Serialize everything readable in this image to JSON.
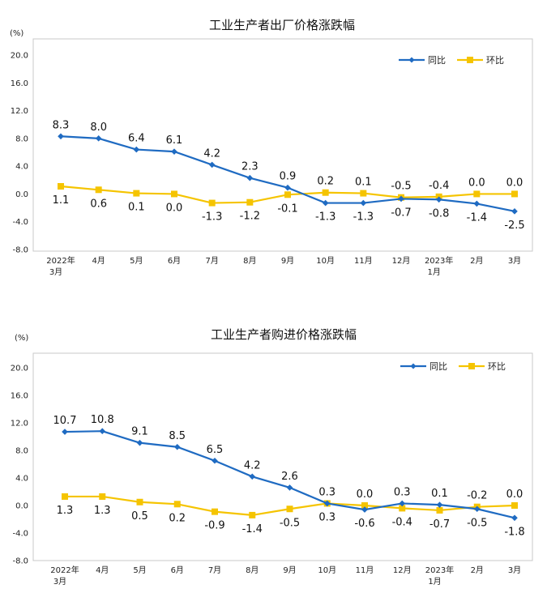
{
  "colors": {
    "yoy": "#1f6bc2",
    "mom": "#f5c400",
    "frame": "#c8c8c8"
  },
  "chart_data": [
    {
      "type": "line",
      "title": "工业生产者出厂价格涨跌幅",
      "unit": "(%)",
      "yticks": [
        "20.0",
        "16.0",
        "12.0",
        "8.0",
        "4.0",
        "0.0",
        "-4.0",
        "-8.0"
      ],
      "ylim": [
        -8,
        20
      ],
      "categories": [
        {
          "line1": "2022年",
          "line2": "3月"
        },
        {
          "line1": "4月",
          "line2": ""
        },
        {
          "line1": "5月",
          "line2": ""
        },
        {
          "line1": "6月",
          "line2": ""
        },
        {
          "line1": "7月",
          "line2": ""
        },
        {
          "line1": "8月",
          "line2": ""
        },
        {
          "line1": "9月",
          "line2": ""
        },
        {
          "line1": "10月",
          "line2": ""
        },
        {
          "line1": "11月",
          "line2": ""
        },
        {
          "line1": "12月",
          "line2": ""
        },
        {
          "line1": "2023年",
          "line2": "1月"
        },
        {
          "line1": "2月",
          "line2": ""
        },
        {
          "line1": "3月",
          "line2": ""
        }
      ],
      "series": [
        {
          "name": "同比",
          "values": [
            8.3,
            8.0,
            6.4,
            6.1,
            4.2,
            2.3,
            0.9,
            -1.3,
            -1.3,
            -0.7,
            -0.8,
            -1.4,
            -2.5
          ],
          "labels": [
            "8.3",
            "8.0",
            "6.4",
            "6.1",
            "4.2",
            "2.3",
            "0.9",
            "-1.3",
            "-1.3",
            "-0.7",
            "-0.8",
            "-1.4",
            "-2.5"
          ],
          "label_pos": [
            "above",
            "above",
            "above",
            "above",
            "above",
            "above",
            "above",
            "below",
            "below",
            "below",
            "below",
            "below",
            "below"
          ]
        },
        {
          "name": "环比",
          "values": [
            1.1,
            0.6,
            0.1,
            0.0,
            -1.3,
            -1.2,
            -0.1,
            0.2,
            0.1,
            -0.5,
            -0.4,
            0.0,
            0.0
          ],
          "labels": [
            "1.1",
            "0.6",
            "0.1",
            "0.0",
            "-1.3",
            "-1.2",
            "-0.1",
            "0.2",
            "0.1",
            "-0.5",
            "-0.4",
            "0.0",
            "0.0"
          ],
          "label_pos": [
            "below",
            "below",
            "below",
            "below",
            "below",
            "below",
            "below",
            "above",
            "above",
            "above",
            "above",
            "above",
            "above"
          ]
        }
      ],
      "legend": "top-right"
    },
    {
      "type": "line",
      "title": "工业生产者购进价格涨跌幅",
      "unit": "(%)",
      "yticks": [
        "20.0",
        "16.0",
        "12.0",
        "8.0",
        "4.0",
        "0.0",
        "-4.0",
        "-8.0"
      ],
      "ylim": [
        -8,
        20
      ],
      "categories": [
        {
          "line1": "2022年",
          "line2": "3月"
        },
        {
          "line1": "4月",
          "line2": ""
        },
        {
          "line1": "5月",
          "line2": ""
        },
        {
          "line1": "6月",
          "line2": ""
        },
        {
          "line1": "7月",
          "line2": ""
        },
        {
          "line1": "8月",
          "line2": ""
        },
        {
          "line1": "9月",
          "line2": ""
        },
        {
          "line1": "10月",
          "line2": ""
        },
        {
          "line1": "11月",
          "line2": ""
        },
        {
          "line1": "12月",
          "line2": ""
        },
        {
          "line1": "2023年",
          "line2": "1月"
        },
        {
          "line1": "2月",
          "line2": ""
        },
        {
          "line1": "3月",
          "line2": ""
        }
      ],
      "series": [
        {
          "name": "同比",
          "values": [
            10.7,
            10.8,
            9.1,
            8.5,
            6.5,
            4.2,
            2.6,
            0.3,
            -0.6,
            0.3,
            0.1,
            -0.5,
            -1.8
          ],
          "labels": [
            "10.7",
            "10.8",
            "9.1",
            "8.5",
            "6.5",
            "4.2",
            "2.6",
            "0.3",
            "-0.6",
            "0.3",
            "0.1",
            "-0.5",
            "-1.8"
          ],
          "label_pos": [
            "above",
            "above",
            "above",
            "above",
            "above",
            "above",
            "above",
            "below",
            "below",
            "above",
            "above",
            "below",
            "below"
          ]
        },
        {
          "name": "环比",
          "values": [
            1.3,
            1.3,
            0.5,
            0.2,
            -0.9,
            -1.4,
            -0.5,
            0.3,
            0.0,
            -0.4,
            -0.7,
            -0.2,
            0.0
          ],
          "labels": [
            "1.3",
            "1.3",
            "0.5",
            "0.2",
            "-0.9",
            "-1.4",
            "-0.5",
            "0.3",
            "0.0",
            "-0.4",
            "-0.7",
            "-0.2",
            "0.0"
          ],
          "label_pos": [
            "below",
            "below",
            "below",
            "below",
            "below",
            "below",
            "below",
            "above",
            "above",
            "below",
            "below",
            "above",
            "above"
          ]
        }
      ],
      "legend": "top-right"
    }
  ]
}
